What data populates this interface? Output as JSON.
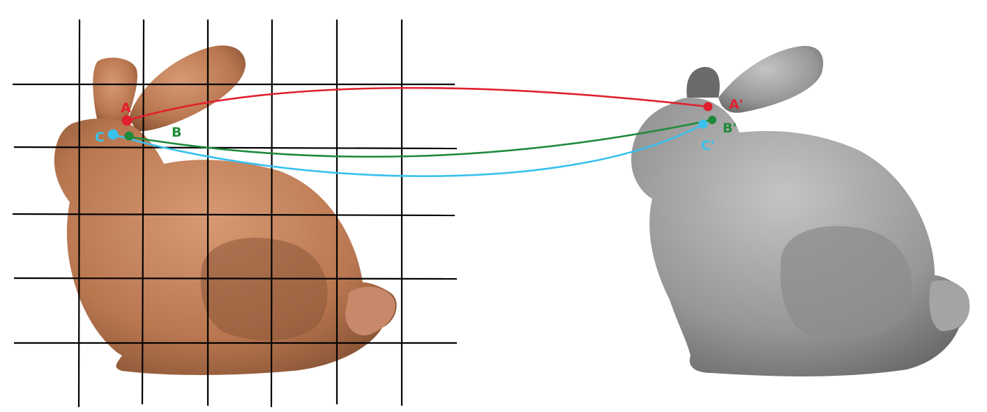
{
  "colors": {
    "background": "#ffffff",
    "grid": "#000000",
    "bunny_textured": "#c2835c",
    "bunny_textured_shadow": "#7a4a2e",
    "bunny_mesh": "#9a9a9a",
    "bunny_mesh_shadow": "#5e5e5e"
  },
  "points": [
    {
      "id": "A",
      "label": "A",
      "color": "#e0202e"
    },
    {
      "id": "B",
      "label": "B",
      "color": "#1f8a3a"
    },
    {
      "id": "C",
      "label": "C",
      "color": "#38c0ee"
    }
  ],
  "matched_points": [
    {
      "id": "A",
      "label": "A'",
      "color": "#e0202e"
    },
    {
      "id": "B",
      "label": "B'",
      "color": "#1f8a3a"
    },
    {
      "id": "C",
      "label": "C'",
      "color": "#38c0ee"
    }
  ],
  "icons": {
    "left_image": "textured-bunny-photo",
    "right_image": "gray-bunny-mesh-render"
  }
}
